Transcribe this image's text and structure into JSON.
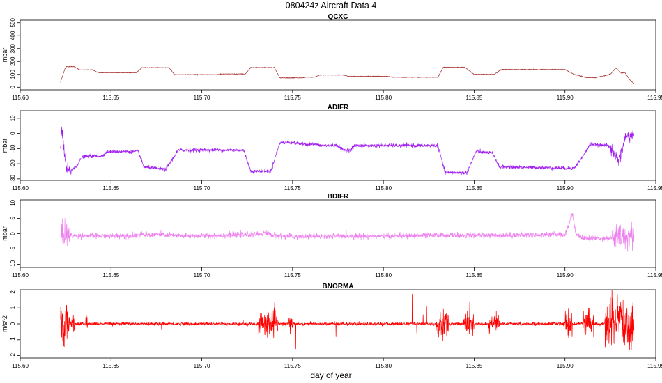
{
  "figure": {
    "title": "080424z   Aircraft Data 4",
    "xlabel": "day of year"
  },
  "chart_data": [
    {
      "type": "line",
      "title": "QCXC",
      "ylabel": "mbar",
      "xlim": [
        115.6,
        115.95
      ],
      "ylim": [
        -20,
        520
      ],
      "xticks": [
        115.6,
        115.65,
        115.7,
        115.75,
        115.8,
        115.85,
        115.9,
        115.95
      ],
      "xtick_labels": [
        "115.60",
        "115.65",
        "115.70",
        "115.75",
        "115.80",
        "115.85",
        "115.90",
        "115.95"
      ],
      "yticks": [
        0,
        100,
        200,
        300,
        400,
        500
      ],
      "ytick_labels": [
        "0",
        "100",
        "200",
        "300",
        "400",
        "500"
      ],
      "color": "#a52a2a",
      "noise": 1.2,
      "series": [
        {
          "x": [
            115.6222,
            115.6245,
            115.6255,
            115.63,
            115.6325,
            115.64,
            115.643,
            115.664,
            115.667,
            115.682,
            115.685,
            115.708,
            115.711,
            115.724,
            115.727,
            115.74,
            115.743,
            115.755,
            115.757,
            115.762,
            115.765,
            115.778,
            115.781,
            115.802,
            115.805,
            115.83,
            115.833,
            115.845,
            115.85,
            115.861,
            115.865,
            115.9,
            115.905,
            115.912,
            115.917,
            115.925,
            115.928,
            115.931,
            115.933,
            115.936,
            115.938
          ],
          "y": [
            38,
            140,
            160,
            160,
            135,
            135,
            113,
            113,
            152,
            152,
            98,
            98,
            103,
            103,
            153,
            153,
            73,
            73,
            78,
            78,
            95,
            95,
            85,
            85,
            78,
            78,
            155,
            155,
            100,
            100,
            138,
            138,
            100,
            75,
            75,
            100,
            150,
            110,
            115,
            50,
            30
          ]
        }
      ]
    },
    {
      "type": "line",
      "title": "ADIFR",
      "ylabel": "mbar",
      "xlim": [
        115.6,
        115.95
      ],
      "ylim": [
        -31,
        15
      ],
      "xticks": [
        115.6,
        115.65,
        115.7,
        115.75,
        115.8,
        115.85,
        115.9,
        115.95
      ],
      "xtick_labels": [
        "115.60",
        "115.65",
        "115.70",
        "115.75",
        "115.80",
        "115.85",
        "115.90",
        "115.95"
      ],
      "yticks": [
        -30,
        -20,
        -10,
        0,
        10
      ],
      "ytick_labels": [
        "-30",
        "-20",
        "-10",
        "0",
        "10"
      ],
      "color": "#a020f0",
      "noise": 0.6,
      "series": [
        {
          "x": [
            115.6222,
            115.6228,
            115.624,
            115.6255,
            115.627,
            115.63,
            115.634,
            115.637,
            115.645,
            115.648,
            115.665,
            115.668,
            115.68,
            115.687,
            115.704,
            115.712,
            115.723,
            115.727,
            115.738,
            115.743,
            115.75,
            115.755,
            115.762,
            115.765,
            115.775,
            115.778,
            115.782,
            115.784,
            115.795,
            115.8,
            115.83,
            115.834,
            115.846,
            115.851,
            115.86,
            115.864,
            115.905,
            115.91,
            115.914,
            115.92,
            115.923,
            115.926,
            115.93,
            115.933,
            115.936,
            115.938
          ],
          "y": [
            -8,
            3,
            -10,
            -24,
            -25,
            -23,
            -16,
            -15,
            -15,
            -12,
            -12,
            -22,
            -24,
            -11,
            -11,
            -11,
            -11,
            -25,
            -25,
            -6,
            -6,
            -7,
            -7,
            -8,
            -8,
            -11,
            -11,
            -8,
            -8,
            -8,
            -8,
            -26,
            -26,
            -12,
            -13,
            -22,
            -23,
            -15,
            -7,
            -8,
            -7,
            -12,
            -18,
            -3,
            -1,
            -1
          ]
        }
      ]
    },
    {
      "type": "line",
      "title": "BDIFR",
      "ylabel": "mbar",
      "xlim": [
        115.6,
        115.95
      ],
      "ylim": [
        -11,
        11
      ],
      "xticks": [
        115.6,
        115.65,
        115.7,
        115.75,
        115.8,
        115.85,
        115.9,
        115.95
      ],
      "xtick_labels": [
        "115.60",
        "115.65",
        "115.70",
        "115.75",
        "115.80",
        "115.85",
        "115.90",
        "115.95"
      ],
      "yticks": [
        -10,
        -5,
        0,
        5,
        10
      ],
      "ytick_labels": [
        "-10",
        "-5",
        "0",
        "5",
        "10"
      ],
      "color": "#ee82ee",
      "noise": 0.45,
      "series": [
        {
          "x": [
            115.6222,
            115.624,
            115.626,
            115.63,
            115.65,
            115.675,
            115.69,
            115.71,
            115.73,
            115.735,
            115.738,
            115.75,
            115.78,
            115.8,
            115.83,
            115.85,
            115.88,
            115.9,
            115.902,
            115.904,
            115.906,
            115.91,
            115.925,
            115.93,
            115.938
          ],
          "y": [
            -1,
            0.5,
            -0.5,
            -0.7,
            -0.8,
            -0.3,
            -0.8,
            -0.6,
            -0.3,
            0.4,
            -0.4,
            -1,
            -0.8,
            -0.9,
            -0.5,
            -0.6,
            -0.4,
            -0.3,
            2.5,
            7,
            0,
            -1.5,
            -1.5,
            -1,
            -1
          ]
        }
      ]
    },
    {
      "type": "line",
      "title": "BNORMA",
      "ylabel": "m/s^2",
      "xlim": [
        115.6,
        115.95
      ],
      "ylim": [
        -2.15,
        2.15
      ],
      "xticks": [
        115.6,
        115.65,
        115.7,
        115.75,
        115.8,
        115.85,
        115.9,
        115.95
      ],
      "xtick_labels": [
        "115.60",
        "115.65",
        "115.70",
        "115.75",
        "115.80",
        "115.85",
        "115.90",
        "115.95"
      ],
      "yticks": [
        -2,
        -1,
        0,
        1,
        2
      ],
      "ytick_labels": [
        "-2",
        "-1",
        "0",
        "1",
        "2"
      ],
      "color": "#ff0000",
      "noise": 0.05,
      "series": [
        {
          "x": [
            115.6222,
            115.938
          ],
          "y": [
            0,
            0
          ]
        }
      ]
    }
  ]
}
